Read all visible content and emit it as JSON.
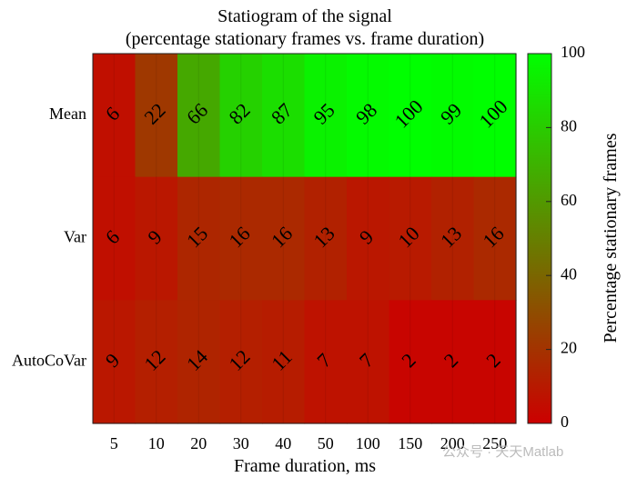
{
  "chart_data": {
    "type": "heatmap",
    "title": "Statiogram of the signal",
    "subtitle": "(percentage stationary frames vs. frame duration)",
    "xlabel": "Frame duration, ms",
    "ylabel": "",
    "x_categories": [
      "5",
      "10",
      "20",
      "30",
      "40",
      "50",
      "100",
      "150",
      "200",
      "250"
    ],
    "y_categories": [
      "Mean",
      "Var",
      "AutoCoVar"
    ],
    "values": [
      [
        6,
        22,
        66,
        82,
        87,
        95,
        98,
        100,
        99,
        100
      ],
      [
        6,
        9,
        15,
        16,
        16,
        13,
        9,
        10,
        13,
        16
      ],
      [
        9,
        12,
        14,
        12,
        11,
        7,
        7,
        2,
        2,
        2
      ]
    ],
    "colormap": {
      "low": "#cc0000",
      "high": "#00ff00"
    },
    "colorbar": {
      "label": "Percentage stationary frames",
      "range": [
        0,
        100
      ],
      "ticks": [
        "0",
        "20",
        "40",
        "60",
        "80",
        "100"
      ]
    },
    "grid": true
  },
  "watermark": "公众号 · 天天Matlab"
}
